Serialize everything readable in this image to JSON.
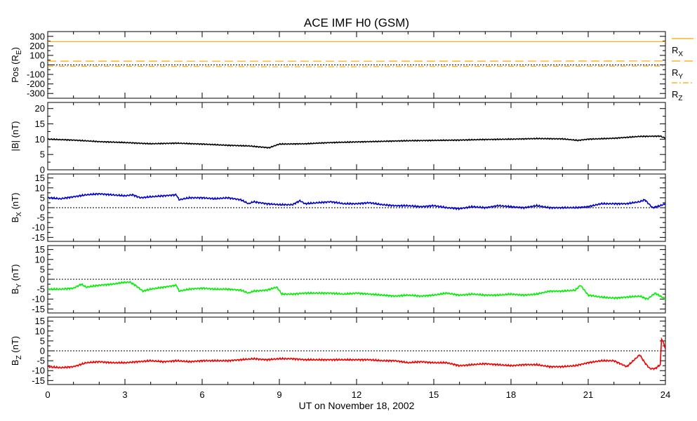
{
  "chart_data": {
    "type": "line",
    "title": "ACE IMF H0 (GSM)",
    "xlabel": "UT on November 18, 2002",
    "xlim": [
      0,
      24
    ],
    "xticks": [
      "0",
      "3",
      "6",
      "9",
      "12",
      "15",
      "18",
      "21",
      "24"
    ],
    "panels": [
      {
        "id": "pos",
        "ylabel_main": "Pos (R",
        "ylabel_sub": "E",
        "ylabel_end": ")",
        "ylim": [
          -350,
          350
        ],
        "yticks": [
          "300",
          "200",
          "100",
          "0",
          "-100",
          "-200",
          "-300"
        ],
        "ytick_values": [
          300,
          200,
          100,
          0,
          -100,
          -200,
          -300
        ],
        "zero_line": true,
        "series": [
          {
            "name": "R",
            "sub": "X",
            "color": "#ffa500",
            "dash": "none",
            "x": [
              0,
              24
            ],
            "values": [
              245,
              245
            ]
          },
          {
            "name": "R",
            "sub": "Y",
            "color": "#ffa500",
            "dash": "12 6",
            "x": [
              0,
              6,
              12,
              18,
              24
            ],
            "values": [
              40,
              39,
              39,
              40,
              41
            ]
          },
          {
            "name": "R",
            "sub": "Z",
            "color": "#ffa500",
            "dash": "8 3 2 3",
            "x": [
              0,
              3,
              6,
              9,
              12,
              15,
              18,
              21,
              24
            ],
            "values": [
              -13,
              -15,
              -17,
              -20,
              -19,
              -17,
              -15,
              -13,
              -12
            ]
          }
        ]
      },
      {
        "id": "bt",
        "ylabel_main": "|B| (nT)",
        "ylabel_sub": "",
        "ylabel_end": "",
        "ylim": [
          0,
          22
        ],
        "yticks": [
          "20",
          "15",
          "10",
          "5",
          "0"
        ],
        "ytick_values": [
          20,
          15,
          10,
          5,
          0
        ],
        "zero_line": false,
        "series": [
          {
            "name": "|B|",
            "color": "#000000",
            "x": [
              0,
              1,
              2,
              3,
              4,
              5,
              6,
              7,
              7.8,
              8.6,
              9,
              10,
              11,
              12,
              13,
              14,
              15,
              16,
              17,
              18,
              19,
              20,
              20.6,
              21,
              22,
              23,
              23.8,
              24
            ],
            "values": [
              10,
              9.7,
              9.2,
              8.9,
              8.5,
              8.7,
              8.4,
              8.0,
              7.8,
              7.2,
              8.4,
              8.5,
              8.9,
              9.1,
              9.3,
              9.5,
              9.6,
              9.7,
              9.9,
              10.0,
              10.2,
              10.1,
              9.6,
              10.0,
              10.3,
              10.9,
              11.0,
              10.3
            ]
          }
        ]
      },
      {
        "id": "bx",
        "ylabel_main": "B",
        "ylabel_sub": "X",
        "ylabel_end": " (nT)",
        "ylim": [
          -17,
          17
        ],
        "yticks": [
          "15",
          "10",
          "5",
          "0",
          "-5",
          "-10",
          "-15"
        ],
        "ytick_values": [
          15,
          10,
          5,
          0,
          -5,
          -10,
          -15
        ],
        "zero_line": true,
        "series": [
          {
            "name": "Bx",
            "color": "#0000cc",
            "x": [
              0,
              0.5,
              1,
              1.5,
              2,
              2.5,
              3,
              3.3,
              3.6,
              4,
              4.5,
              5,
              5.1,
              5.5,
              6,
              6.5,
              7,
              7.5,
              7.8,
              8,
              8.5,
              9,
              9.5,
              9.8,
              10,
              10.5,
              11,
              11.5,
              12,
              12.5,
              13,
              13.5,
              14,
              14.5,
              15,
              15.5,
              16,
              16.5,
              17,
              17.5,
              18,
              18.5,
              19,
              19.5,
              20,
              20.5,
              21,
              21.5,
              22,
              22.5,
              23,
              23.2,
              23.5,
              23.8,
              24
            ],
            "values": [
              5,
              4.5,
              5.5,
              6.5,
              7,
              6.5,
              6,
              6.5,
              5,
              5.5,
              6,
              6.5,
              4,
              5,
              5,
              4.5,
              5,
              4,
              2,
              3,
              2,
              1.5,
              1.5,
              3.5,
              2,
              2.5,
              3,
              2,
              2,
              2.5,
              1.5,
              1,
              1,
              0.5,
              1,
              0,
              -0.5,
              0.5,
              0,
              1,
              0.5,
              0,
              1,
              0,
              0,
              0,
              0.5,
              2,
              2,
              2,
              3,
              4,
              0,
              1,
              2
            ]
          }
        ]
      },
      {
        "id": "by",
        "ylabel_main": "B",
        "ylabel_sub": "Y",
        "ylabel_end": " (nT)",
        "ylim": [
          -17,
          17
        ],
        "yticks": [
          "15",
          "10",
          "5",
          "0",
          "-5",
          "-10",
          "-15"
        ],
        "ytick_values": [
          15,
          10,
          5,
          0,
          -5,
          -10,
          -15
        ],
        "zero_line": true,
        "series": [
          {
            "name": "By",
            "color": "#00ee00",
            "x": [
              0,
              0.5,
              1,
              1.3,
              1.5,
              2,
              2.5,
              3,
              3.2,
              3.4,
              3.7,
              4,
              4.5,
              5,
              5.1,
              5.5,
              6,
              6.5,
              7,
              7.5,
              7.8,
              8,
              8.5,
              8.9,
              9.1,
              9.5,
              10,
              10.5,
              11,
              11.5,
              12,
              12.5,
              13,
              13.5,
              14,
              14.5,
              15,
              15.5,
              16,
              16.5,
              17,
              17.5,
              18,
              18.5,
              19,
              19.5,
              20,
              20.5,
              20.7,
              21,
              21.5,
              22,
              22.5,
              23,
              23.3,
              23.6,
              24
            ],
            "values": [
              -5,
              -5,
              -4.5,
              -2.5,
              -4,
              -3,
              -2.5,
              -1.5,
              -1.5,
              -3,
              -6,
              -5,
              -4,
              -3,
              -6,
              -5,
              -4.5,
              -5,
              -5,
              -5.5,
              -7,
              -6,
              -5.5,
              -4,
              -7.5,
              -7.5,
              -7,
              -7,
              -7,
              -7.5,
              -7,
              -7.5,
              -8,
              -8.5,
              -8,
              -8.5,
              -8,
              -7,
              -8,
              -7.5,
              -8,
              -8,
              -7.5,
              -8,
              -7.5,
              -6,
              -6,
              -5.5,
              -3,
              -8,
              -9,
              -9.5,
              -9,
              -8.5,
              -10,
              -7,
              -10
            ]
          }
        ]
      },
      {
        "id": "bz",
        "ylabel_main": "B",
        "ylabel_sub": "Z",
        "ylabel_end": " (nT)",
        "ylim": [
          -17,
          17
        ],
        "yticks": [
          "15",
          "10",
          "5",
          "0",
          "-5",
          "-10",
          "-15"
        ],
        "ytick_values": [
          15,
          10,
          5,
          0,
          -5,
          -10,
          -15
        ],
        "zero_line": true,
        "series": [
          {
            "name": "Bz",
            "color": "#ee0000",
            "x": [
              0,
              0.5,
              1,
              1.5,
              2,
              2.5,
              3,
              3.5,
              4,
              4.5,
              5,
              5.5,
              6,
              6.5,
              7,
              7.5,
              8,
              8.5,
              9,
              9.5,
              10,
              10.5,
              11,
              11.5,
              12,
              12.5,
              13,
              13.5,
              14,
              14.5,
              15,
              15.5,
              16,
              16.5,
              17,
              17.5,
              18,
              18.5,
              19,
              19.5,
              20,
              20.5,
              21,
              21.5,
              22,
              22.5,
              23,
              23.2,
              23.4,
              23.6,
              23.8,
              23.85,
              23.9,
              24
            ],
            "values": [
              -8,
              -8.5,
              -8,
              -6,
              -5.5,
              -6,
              -6,
              -5.5,
              -5,
              -5.5,
              -5,
              -5.5,
              -5,
              -5,
              -5,
              -4.5,
              -4,
              -4.5,
              -4,
              -4,
              -4.5,
              -4.5,
              -4.5,
              -4.5,
              -4.5,
              -4.5,
              -5,
              -5,
              -6,
              -5.5,
              -6,
              -6,
              -7.5,
              -7,
              -6.5,
              -7,
              -7.5,
              -7,
              -7,
              -8,
              -8,
              -7.5,
              -6,
              -5,
              -5,
              -8,
              -2,
              -6,
              -9,
              -9,
              -7,
              6,
              5,
              1
            ]
          }
        ]
      }
    ],
    "legend": [
      {
        "name": "R",
        "sub": "X",
        "color": "#ffa500",
        "dash": "none"
      },
      {
        "name": "R",
        "sub": "Y",
        "color": "#ffa500",
        "dash": "12 6"
      },
      {
        "name": "R",
        "sub": "Z",
        "color": "#ffa500",
        "dash": "8 3 2 3"
      }
    ]
  }
}
